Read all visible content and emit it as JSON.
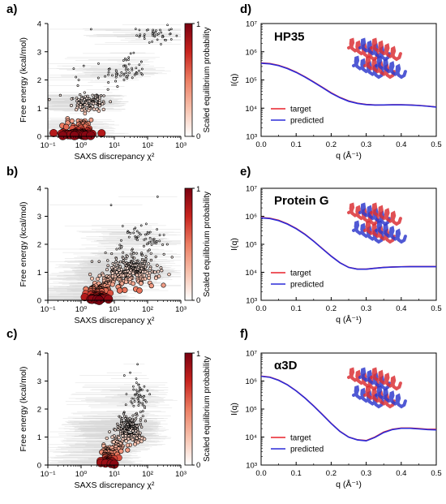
{
  "chart_data": [
    {
      "panel": "a)",
      "type": "scatter",
      "xlabel": "SAXS discrepancy χ²",
      "ylabel": "Free energy (kcal/mol)",
      "colorbar_label": "Scaled equilibrium probability",
      "colorbar_ticks": [
        "0",
        "1"
      ],
      "x_scale": "log",
      "xlim": [
        0.1,
        1000
      ],
      "ylim": [
        0,
        4
      ],
      "xticks": [
        "10⁻¹",
        "10⁰",
        "10¹",
        "10²",
        "10³"
      ],
      "yticks": [
        "0",
        "1",
        "2",
        "3",
        "4"
      ],
      "colormap": [
        "#ffffff",
        "#f7c1ad",
        "#ec7d62",
        "#c8231e",
        "#7a0010"
      ],
      "clusters": [
        {
          "cx": 0.85,
          "cy": 0.15,
          "sx": 0.55,
          "sy": 0.6,
          "n": 70
        },
        {
          "cx": 0.9,
          "cy": 1.2,
          "sx": 0.5,
          "sy": 0.45,
          "n": 30
        },
        {
          "cx": 2.3,
          "cy": 1.2,
          "sx": 0.5,
          "sy": 0.35,
          "n": 75
        },
        {
          "cx": 20,
          "cy": 2.3,
          "sx": 0.7,
          "sy": 0.55,
          "n": 60
        },
        {
          "cx": 170,
          "cy": 3.6,
          "sx": 0.6,
          "sy": 0.35,
          "n": 40
        }
      ],
      "sparse": [
        [
          0.6,
          2.4
        ],
        [
          0.7,
          2.1
        ],
        [
          0.85,
          2.0
        ],
        [
          0.8,
          1.8
        ],
        [
          2.0,
          3.8
        ],
        [
          1.2,
          2.5
        ]
      ]
    },
    {
      "panel": "b)",
      "type": "scatter",
      "xlabel": "SAXS discrepancy χ²",
      "ylabel": "Free energy (kcal/mol)",
      "colorbar_label": "Scaled equilibrium probability",
      "colorbar_ticks": [
        "0",
        "1"
      ],
      "x_scale": "log",
      "xlim": [
        0.1,
        1000
      ],
      "ylim": [
        0,
        4
      ],
      "xticks": [
        "10⁻¹",
        "10⁰",
        "10¹",
        "10²",
        "10³"
      ],
      "yticks": [
        "0",
        "1",
        "2",
        "3",
        "4"
      ],
      "colormap": [
        "#ffffff",
        "#f7c1ad",
        "#ec7d62",
        "#c8231e",
        "#7a0010"
      ],
      "clusters": [
        {
          "cx": 3.0,
          "cy": 0.2,
          "sx": 0.35,
          "sy": 0.35,
          "n": 70
        },
        {
          "cx": 5.5,
          "cy": 0.6,
          "sx": 0.45,
          "sy": 0.45,
          "n": 40
        },
        {
          "cx": 30,
          "cy": 1.1,
          "sx": 0.9,
          "sy": 0.55,
          "n": 260
        },
        {
          "cx": 80,
          "cy": 2.1,
          "sx": 0.7,
          "sy": 0.6,
          "n": 60
        }
      ],
      "sparse": [
        [
          8,
          3.4
        ],
        [
          200,
          3.7
        ],
        [
          3.5,
          0.0
        ],
        [
          2.8,
          0.05
        ]
      ]
    },
    {
      "panel": "c)",
      "type": "scatter",
      "xlabel": "SAXS discrepancy χ²",
      "ylabel": "Free energy (kcal/mol)",
      "colorbar_label": "Scaled equilibrium probability",
      "colorbar_ticks": [
        "0",
        "1"
      ],
      "x_scale": "log",
      "xlim": [
        0.1,
        1000
      ],
      "ylim": [
        0,
        4
      ],
      "xticks": [
        "10⁻¹",
        "10⁰",
        "10¹",
        "10²",
        "10³"
      ],
      "yticks": [
        "0",
        "1",
        "2",
        "3",
        "4"
      ],
      "colormap": [
        "#ffffff",
        "#f7c1ad",
        "#ec7d62",
        "#c8231e",
        "#7a0010"
      ],
      "clusters": [
        {
          "cx": 6.5,
          "cy": 0.3,
          "sx": 0.25,
          "sy": 0.5,
          "n": 55
        },
        {
          "cx": 12,
          "cy": 0.7,
          "sx": 0.35,
          "sy": 0.45,
          "n": 40
        },
        {
          "cx": 30,
          "cy": 1.3,
          "sx": 0.45,
          "sy": 0.55,
          "n": 200
        },
        {
          "cx": 55,
          "cy": 2.4,
          "sx": 0.3,
          "sy": 0.55,
          "n": 50
        }
      ],
      "sparse": [
        [
          30,
          3.3
        ],
        [
          50,
          3.6
        ],
        [
          20,
          3.2
        ]
      ]
    },
    {
      "panel": "d)",
      "type": "line",
      "protein": "HP35",
      "xlabel": "q (Å⁻¹)",
      "ylabel": "I(q)",
      "y_scale": "log",
      "xlim": [
        0,
        0.5
      ],
      "ylim": [
        1000,
        10000000
      ],
      "xticks": [
        "0.0",
        "0.1",
        "0.2",
        "0.3",
        "0.4",
        "0.5"
      ],
      "yticks": [
        "10³",
        "10⁴",
        "10⁵",
        "10⁶",
        "10⁷"
      ],
      "legend": [
        "target",
        "predicted"
      ],
      "series_colors": [
        "#e8202a",
        "#2b2bd9"
      ],
      "x": [
        0,
        0.025,
        0.05,
        0.075,
        0.1,
        0.125,
        0.15,
        0.175,
        0.2,
        0.225,
        0.25,
        0.275,
        0.3,
        0.325,
        0.35,
        0.375,
        0.4,
        0.425,
        0.45,
        0.475,
        0.5
      ],
      "series": [
        {
          "name": "target",
          "values": [
            400000,
            380000,
            330000,
            260000,
            190000,
            130000,
            85000,
            55000,
            35000,
            24000,
            18000,
            15000,
            13500,
            13000,
            13000,
            13200,
            13200,
            13000,
            12500,
            11800,
            11000
          ]
        },
        {
          "name": "predicted",
          "values": [
            390000,
            372000,
            322000,
            253000,
            185000,
            127000,
            83000,
            53500,
            34000,
            23500,
            17500,
            14700,
            13300,
            12900,
            13000,
            13100,
            13100,
            12900,
            12400,
            11700,
            10900
          ]
        }
      ]
    },
    {
      "panel": "e)",
      "type": "line",
      "protein": "Protein G",
      "xlabel": "q (Å⁻¹)",
      "ylabel": "I(q)",
      "y_scale": "log",
      "xlim": [
        0,
        0.5
      ],
      "ylim": [
        1000,
        10000000
      ],
      "xticks": [
        "0.0",
        "0.1",
        "0.2",
        "0.3",
        "0.4",
        "0.5"
      ],
      "yticks": [
        "10³",
        "10⁴",
        "10⁵",
        "10⁶",
        "10⁷"
      ],
      "legend": [
        "target",
        "predicted"
      ],
      "series_colors": [
        "#e8202a",
        "#2b2bd9"
      ],
      "x": [
        0,
        0.025,
        0.05,
        0.075,
        0.1,
        0.125,
        0.15,
        0.175,
        0.2,
        0.225,
        0.25,
        0.275,
        0.3,
        0.325,
        0.35,
        0.375,
        0.4,
        0.425,
        0.45,
        0.475,
        0.5
      ],
      "series": [
        {
          "name": "target",
          "values": [
            900000,
            850000,
            720000,
            540000,
            370000,
            230000,
            130000,
            70000,
            38000,
            22000,
            15000,
            13000,
            13000,
            14000,
            15000,
            15500,
            15800,
            16000,
            16000,
            16000,
            16000
          ]
        },
        {
          "name": "predicted",
          "values": [
            880000,
            830000,
            700000,
            525000,
            360000,
            225000,
            128000,
            69000,
            37500,
            21800,
            14900,
            12900,
            12900,
            13900,
            14900,
            15400,
            15700,
            15900,
            15900,
            15900,
            15900
          ]
        }
      ]
    },
    {
      "panel": "f)",
      "type": "line",
      "protein": "α3D",
      "xlabel": "q (Å⁻¹)",
      "ylabel": "I(q)",
      "y_scale": "log",
      "xlim": [
        0,
        0.5
      ],
      "ylim": [
        1000,
        10000000
      ],
      "xticks": [
        "0.0",
        "0.1",
        "0.2",
        "0.3",
        "0.4",
        "0.5"
      ],
      "yticks": [
        "10³",
        "10⁴",
        "10⁵",
        "10⁶",
        "10⁷"
      ],
      "legend": [
        "target",
        "predicted"
      ],
      "series_colors": [
        "#e8202a",
        "#2b2bd9"
      ],
      "x": [
        0,
        0.025,
        0.05,
        0.075,
        0.1,
        0.125,
        0.15,
        0.175,
        0.2,
        0.225,
        0.25,
        0.275,
        0.3,
        0.325,
        0.35,
        0.375,
        0.4,
        0.425,
        0.45,
        0.475,
        0.5
      ],
      "series": [
        {
          "name": "target",
          "values": [
            1500000,
            1380000,
            1080000,
            740000,
            450000,
            250000,
            130000,
            64000,
            31000,
            16000,
            10000,
            8000,
            7500,
            10000,
            15000,
            19000,
            21000,
            21000,
            20000,
            19000,
            19000
          ]
        },
        {
          "name": "predicted",
          "values": [
            1480000,
            1360000,
            1060000,
            730000,
            445000,
            248000,
            128000,
            63000,
            30500,
            15800,
            9900,
            7900,
            7300,
            9700,
            14500,
            18500,
            20500,
            20500,
            19500,
            18500,
            18000
          ]
        }
      ]
    }
  ]
}
